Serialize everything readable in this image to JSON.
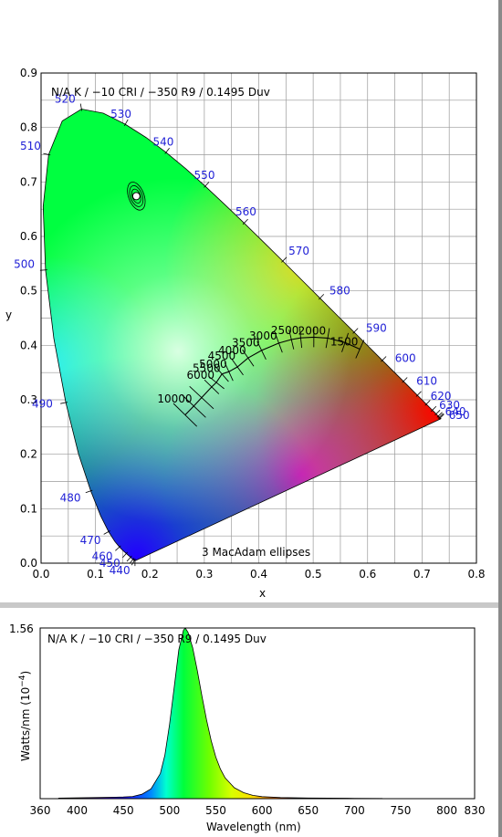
{
  "chromaticity": {
    "chart_data": {
      "type": "scatter",
      "subtitle": "N/A K / −10 CRI / −350 R9 / 0.1495 Duv",
      "xlabel": "x",
      "ylabel": "y",
      "xlim": [
        0.0,
        0.8
      ],
      "ylim": [
        0.0,
        0.9
      ],
      "grid": true,
      "x_ticks": [
        "0.0",
        "0.1",
        "0.2",
        "0.3",
        "0.4",
        "0.5",
        "0.6",
        "0.7",
        "0.8"
      ],
      "y_ticks": [
        "0.0",
        "0.1",
        "0.2",
        "0.3",
        "0.4",
        "0.5",
        "0.6",
        "0.7",
        "0.8",
        "0.9"
      ],
      "wavelength_labels": [
        {
          "text": "440",
          "x": 0.174,
          "y": 0.005
        },
        {
          "text": "450",
          "x": 0.157,
          "y": 0.018
        },
        {
          "text": "460",
          "x": 0.144,
          "y": 0.03
        },
        {
          "text": "470",
          "x": 0.124,
          "y": 0.058
        },
        {
          "text": "480",
          "x": 0.091,
          "y": 0.133
        },
        {
          "text": "490",
          "x": 0.045,
          "y": 0.295
        },
        {
          "text": "500",
          "x": 0.008,
          "y": 0.538
        },
        {
          "text": "510",
          "x": 0.014,
          "y": 0.75
        },
        {
          "text": "520",
          "x": 0.074,
          "y": 0.834
        },
        {
          "text": "530",
          "x": 0.155,
          "y": 0.806
        },
        {
          "text": "540",
          "x": 0.23,
          "y": 0.754
        },
        {
          "text": "550",
          "x": 0.302,
          "y": 0.692
        },
        {
          "text": "560",
          "x": 0.373,
          "y": 0.625
        },
        {
          "text": "570",
          "x": 0.444,
          "y": 0.555
        },
        {
          "text": "580",
          "x": 0.512,
          "y": 0.487
        },
        {
          "text": "590",
          "x": 0.575,
          "y": 0.424
        },
        {
          "text": "600",
          "x": 0.627,
          "y": 0.373
        },
        {
          "text": "610",
          "x": 0.666,
          "y": 0.334
        },
        {
          "text": "620",
          "x": 0.692,
          "y": 0.308
        },
        {
          "text": "630",
          "x": 0.708,
          "y": 0.292
        },
        {
          "text": "640",
          "x": 0.719,
          "y": 0.281
        },
        {
          "text": "650",
          "x": 0.726,
          "y": 0.274
        }
      ],
      "cct_labels": [
        {
          "text": "10000",
          "x": 0.281,
          "y": 0.288
        },
        {
          "text": "6000",
          "x": 0.322,
          "y": 0.332
        },
        {
          "text": "5500",
          "x": 0.333,
          "y": 0.344
        },
        {
          "text": "5000",
          "x": 0.345,
          "y": 0.352
        },
        {
          "text": "4500",
          "x": 0.361,
          "y": 0.367
        },
        {
          "text": "4000",
          "x": 0.38,
          "y": 0.377
        },
        {
          "text": "3500",
          "x": 0.405,
          "y": 0.391
        },
        {
          "text": "3000",
          "x": 0.437,
          "y": 0.404
        },
        {
          "text": "2500",
          "x": 0.477,
          "y": 0.414
        },
        {
          "text": "2000",
          "x": 0.527,
          "y": 0.413
        },
        {
          "text": "1500",
          "x": 0.586,
          "y": 0.393
        }
      ],
      "point": {
        "x": 0.175,
        "y": 0.674
      },
      "annotation": "3  MacAdam ellipses"
    }
  },
  "spectrum": {
    "chart_data": {
      "type": "area",
      "subtitle": "N/A K / −10 CRI / −350 R9 / 0.1495 Duv",
      "xlabel": "Wavelength (nm)",
      "ylabel": "Watts/nm (10",
      "ylabel_sup": "−4",
      "ylabel_close": ")",
      "xlim": [
        360,
        830
      ],
      "ylim": [
        0,
        1.56
      ],
      "ymax_label": "1.56",
      "x_ticks": [
        "360",
        "400",
        "450",
        "500",
        "550",
        "600",
        "650",
        "700",
        "750",
        "800",
        "830"
      ],
      "peak_nm": 517,
      "peak_value": 1.56,
      "x": [
        380,
        420,
        450,
        460,
        470,
        480,
        490,
        495,
        500,
        505,
        510,
        515,
        517,
        520,
        525,
        530,
        535,
        540,
        545,
        550,
        555,
        560,
        570,
        580,
        590,
        600,
        620,
        650,
        700,
        730
      ],
      "values": [
        0.005,
        0.01,
        0.015,
        0.02,
        0.04,
        0.09,
        0.23,
        0.4,
        0.68,
        1.02,
        1.36,
        1.54,
        1.56,
        1.52,
        1.38,
        1.17,
        0.94,
        0.72,
        0.53,
        0.38,
        0.27,
        0.19,
        0.1,
        0.055,
        0.03,
        0.018,
        0.01,
        0.006,
        0.003,
        0.002
      ]
    }
  }
}
